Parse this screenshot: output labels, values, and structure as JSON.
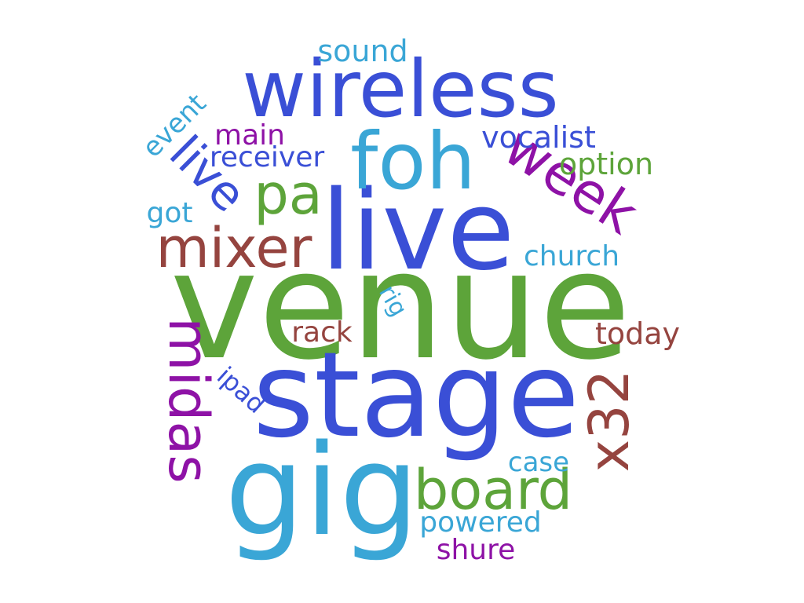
{
  "colors": {
    "blue": "#3a4fd6",
    "green": "#5da43a",
    "cyan": "#3aa6d6",
    "purple": "#8e12a6",
    "brown": "#95443f"
  },
  "words": [
    {
      "text": "venue",
      "color": "green"
    },
    {
      "text": "stage",
      "color": "blue"
    },
    {
      "text": "gig",
      "color": "cyan"
    },
    {
      "text": "live",
      "color": "blue"
    },
    {
      "text": "wireless",
      "color": "blue"
    },
    {
      "text": "foh",
      "color": "cyan"
    },
    {
      "text": "board",
      "color": "green"
    },
    {
      "text": "week",
      "color": "purple"
    },
    {
      "text": "mixer",
      "color": "brown"
    },
    {
      "text": "midas",
      "color": "purple"
    },
    {
      "text": "x32",
      "color": "brown"
    },
    {
      "text": "pa",
      "color": "green"
    },
    {
      "text": "live",
      "color": "blue"
    },
    {
      "text": "sound",
      "color": "cyan"
    },
    {
      "text": "main",
      "color": "purple"
    },
    {
      "text": "receiver",
      "color": "blue"
    },
    {
      "text": "vocalist",
      "color": "blue"
    },
    {
      "text": "option",
      "color": "green"
    },
    {
      "text": "event",
      "color": "cyan"
    },
    {
      "text": "got",
      "color": "cyan"
    },
    {
      "text": "church",
      "color": "cyan"
    },
    {
      "text": "rig",
      "color": "cyan"
    },
    {
      "text": "rack",
      "color": "brown"
    },
    {
      "text": "today",
      "color": "brown"
    },
    {
      "text": "ipad",
      "color": "blue"
    },
    {
      "text": "case",
      "color": "cyan"
    },
    {
      "text": "powered",
      "color": "cyan"
    },
    {
      "text": "shure",
      "color": "purple"
    }
  ]
}
